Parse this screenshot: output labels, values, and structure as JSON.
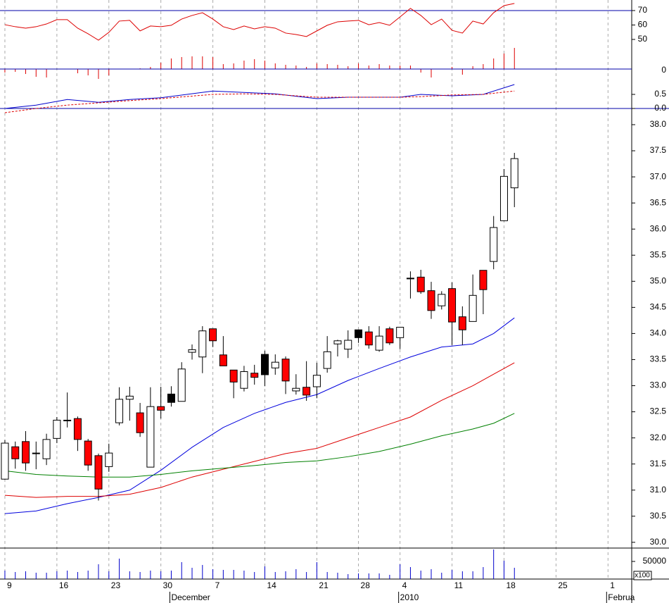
{
  "chart_data": {
    "type": "candlestick",
    "xlim": [
      -0.47,
      60.28
    ],
    "xticks": [
      {
        "value": 0,
        "label": "9"
      },
      {
        "value": 5,
        "label": "16"
      },
      {
        "value": 10,
        "label": "23"
      },
      {
        "value": 15,
        "label": "30"
      },
      {
        "value": 20,
        "label": "7"
      },
      {
        "value": 25,
        "label": "14"
      },
      {
        "value": 30,
        "label": "21"
      },
      {
        "value": 34,
        "label": "28"
      },
      {
        "value": 38,
        "label": "4"
      },
      {
        "value": 43,
        "label": "11"
      },
      {
        "value": 48,
        "label": "18"
      },
      {
        "value": 53,
        "label": "25"
      },
      {
        "value": 58,
        "label": "1"
      }
    ],
    "month_labels": [
      {
        "value": 16,
        "label": "December"
      },
      {
        "value": 38,
        "label": "2010"
      },
      {
        "value": 58,
        "label": "Februa"
      }
    ],
    "ylim": [
      29.89,
      38.31
    ],
    "yticks": [
      {
        "value": 30,
        "label": "30.0"
      },
      30.5,
      {
        "value": 31,
        "label": "31.0"
      },
      31.5,
      {
        "value": 32,
        "label": "32.0"
      },
      32.5,
      {
        "value": 33,
        "label": "33.0"
      },
      33.5,
      {
        "value": 34,
        "label": "34.0"
      },
      34.5,
      {
        "value": 35,
        "label": "35.0"
      },
      35.5,
      {
        "value": 36,
        "label": "36.0"
      },
      36.5,
      {
        "value": 37,
        "label": "37.0"
      },
      37.5,
      {
        "value": 38,
        "label": "38.0"
      }
    ],
    "open": [
      31.21,
      31.83,
      31.93,
      31.7,
      31.6,
      31.99,
      32.33,
      32.37,
      31.94,
      31.66,
      31.45,
      32.29,
      32.74,
      32.48,
      31.44,
      32.6,
      32.68,
      32.7,
      33.64,
      33.55,
      34.09,
      33.59,
      33.3,
      32.95,
      33.24,
      33.21,
      33.34,
      33.51,
      32.9,
      32.97,
      32.98,
      33.33,
      33.8,
      33.7,
      33.92,
      34.03,
      33.68,
      34.09,
      33.92,
      35.06,
      35.08,
      34.82,
      34.53,
      34.86,
      34.32,
      34.23,
      35.21,
      35.38,
      36.16,
      36.79
    ],
    "high": [
      31.96,
      31.93,
      32.13,
      31.93,
      32.08,
      32.4,
      32.87,
      32.41,
      31.98,
      31.7,
      31.89,
      32.97,
      32.98,
      32.67,
      32.97,
      32.98,
      32.99,
      33.45,
      33.79,
      34.14,
      34.09,
      33.95,
      33.3,
      33.38,
      33.4,
      33.67,
      33.6,
      33.56,
      33.22,
      33.47,
      33.44,
      33.95,
      33.88,
      34.06,
      34.07,
      34.14,
      34.14,
      34.13,
      34.12,
      35.19,
      35.22,
      34.99,
      34.81,
      34.98,
      34.52,
      35.13,
      35.21,
      36.25,
      37.15,
      37.46
    ],
    "low": [
      31.2,
      31.41,
      31.37,
      31.4,
      31.48,
      31.9,
      32.2,
      31.75,
      31.37,
      30.8,
      31.35,
      32.24,
      32.33,
      32.02,
      31.44,
      32.37,
      32.6,
      32.7,
      33.5,
      33.24,
      33.74,
      33.38,
      32.76,
      32.89,
      33.02,
      32.99,
      33.21,
      32.84,
      32.83,
      32.71,
      32.76,
      33.25,
      33.56,
      33.53,
      33.82,
      33.71,
      33.65,
      33.78,
      33.7,
      34.67,
      34.76,
      34.28,
      34.46,
      33.78,
      33.78,
      34.23,
      34.37,
      35.23,
      36.15,
      36.42
    ],
    "close": [
      31.9,
      31.6,
      31.52,
      31.71,
      31.97,
      32.34,
      32.34,
      31.97,
      31.48,
      31.02,
      31.71,
      32.74,
      32.8,
      32.1,
      32.6,
      32.53,
      32.84,
      33.32,
      33.69,
      34.05,
      33.86,
      33.38,
      33.07,
      33.27,
      33.16,
      33.6,
      33.45,
      33.09,
      32.95,
      32.82,
      33.2,
      33.65,
      33.86,
      33.87,
      34.07,
      33.78,
      33.95,
      33.82,
      34.12,
      35.06,
      34.8,
      34.44,
      34.75,
      34.22,
      34.07,
      34.73,
      34.84,
      36.03,
      37.01,
      37.35
    ],
    "candle_colors": [
      "#ffffff",
      "#ff0000",
      "#ff0000",
      "#ffffff",
      "#ffffff",
      "#ffffff",
      "#ffffff",
      "#ff0000",
      "#ff0000",
      "#ff0000",
      "#ffffff",
      "#ffffff",
      "#ffffff",
      "#ff0000",
      "#ffffff",
      "#ff0000",
      "#000000",
      "#ffffff",
      "#ffffff",
      "#ffffff",
      "#ff0000",
      "#ff0000",
      "#ff0000",
      "#ffffff",
      "#ff0000",
      "#000000",
      "#ffffff",
      "#ff0000",
      "#ffffff",
      "#ff0000",
      "#ffffff",
      "#ffffff",
      "#ffffff",
      "#ffffff",
      "#000000",
      "#ff0000",
      "#ffffff",
      "#ff0000",
      "#ffffff",
      "#000000",
      "#ff0000",
      "#ff0000",
      "#ffffff",
      "#ff0000",
      "#ff0000",
      "#ffffff",
      "#ff0000",
      "#ffffff",
      "#ffffff",
      "#ffffff"
    ],
    "moving_averages": {
      "x": [
        0,
        3,
        6,
        9,
        12,
        15,
        18,
        21,
        24,
        27,
        30,
        33,
        36,
        39,
        42,
        45,
        47,
        49
      ],
      "series": [
        {
          "color": "#0000dd",
          "values": [
            30.55,
            30.6,
            30.74,
            30.86,
            31.0,
            31.38,
            31.82,
            32.2,
            32.47,
            32.68,
            32.83,
            33.1,
            33.33,
            33.55,
            33.74,
            33.8,
            34.0,
            34.3
          ]
        },
        {
          "color": "#dd0000",
          "values": [
            30.9,
            30.86,
            30.88,
            30.88,
            30.92,
            31.05,
            31.25,
            31.4,
            31.55,
            31.7,
            31.8,
            32.0,
            32.2,
            32.4,
            32.72,
            33.0,
            33.22,
            33.44
          ]
        },
        {
          "color": "#008000",
          "values": [
            31.37,
            31.3,
            31.27,
            31.25,
            31.25,
            31.3,
            31.37,
            31.42,
            31.47,
            31.53,
            31.56,
            31.64,
            31.74,
            31.88,
            32.04,
            32.17,
            32.28,
            32.47
          ]
        }
      ]
    },
    "rsi": {
      "ylim": [
        29.5,
        77.3
      ],
      "yticks": [
        70,
        60,
        50
      ],
      "reference": 70,
      "color": "#dd0000",
      "values": [
        60.2,
        58.8,
        57.8,
        58.8,
        60.7,
        63.7,
        63.7,
        57.8,
        53.9,
        49.5,
        54.9,
        62.7,
        63.2,
        55.9,
        59.3,
        58.8,
        59.8,
        64.1,
        66.6,
        68.5,
        64.1,
        58.8,
        56.8,
        59.3,
        57.3,
        58.8,
        57.8,
        54.4,
        53.4,
        52.0,
        55.9,
        59.8,
        62.2,
        62.7,
        63.2,
        60.2,
        61.7,
        59.8,
        65.6,
        71.5,
        66.6,
        60.2,
        64.1,
        56.3,
        54.4,
        62.7,
        60.7,
        68.5,
        73.4,
        74.9
      ]
    },
    "momentum": {
      "ylim": [
        -56,
        98
      ],
      "yticks": [
        0
      ],
      "color": "#dd0000",
      "values": [
        -5,
        -4,
        -7,
        -11,
        -12,
        0,
        0,
        -6,
        -9,
        -14,
        -9,
        0,
        0,
        1,
        3,
        9,
        15,
        17,
        18,
        18,
        17,
        7,
        8,
        12,
        14,
        12,
        8,
        6,
        5,
        3,
        8,
        7,
        6,
        4,
        8,
        5,
        7,
        5,
        5,
        5,
        -5,
        -12,
        0,
        3,
        -8,
        4,
        7,
        15,
        22,
        30
      ]
    },
    "macd": {
      "ylim": [
        0,
        1.4
      ],
      "yticks": [
        0.5,
        {
          "value": 0,
          "label": "0.0"
        }
      ],
      "x": [
        0,
        3,
        6,
        9,
        12,
        15,
        20,
        23,
        26,
        30,
        33,
        38,
        40,
        43,
        46,
        49
      ],
      "series": [
        {
          "color": "#0000cc",
          "values": [
            0.0,
            0.12,
            0.32,
            0.22,
            0.32,
            0.38,
            0.62,
            0.57,
            0.52,
            0.35,
            0.4,
            0.4,
            0.5,
            0.45,
            0.5,
            0.85
          ]
        },
        {
          "color": "#dd0000",
          "dashed": true,
          "values": [
            -0.15,
            0.0,
            0.12,
            0.2,
            0.28,
            0.35,
            0.5,
            0.52,
            0.5,
            0.4,
            0.4,
            0.4,
            0.42,
            0.48,
            0.5,
            0.62
          ]
        }
      ]
    },
    "volume": {
      "ylim": [
        0,
        88000
      ],
      "yticks": [
        50000
      ],
      "unit_label": "x100",
      "color": "#0000cc",
      "values": [
        24000,
        20000,
        22000,
        18000,
        18000,
        22000,
        24000,
        20000,
        24000,
        42000,
        22000,
        58000,
        22000,
        20000,
        24000,
        22000,
        24000,
        48000,
        32000,
        40000,
        28000,
        26000,
        26000,
        24000,
        20000,
        36000,
        20000,
        22000,
        28000,
        20000,
        48000,
        20000,
        18000,
        14000,
        16000,
        16000,
        16000,
        12000,
        42000,
        34000,
        24000,
        28000,
        18000,
        26000,
        22000,
        22000,
        34000,
        84000,
        52000,
        32000
      ]
    }
  }
}
